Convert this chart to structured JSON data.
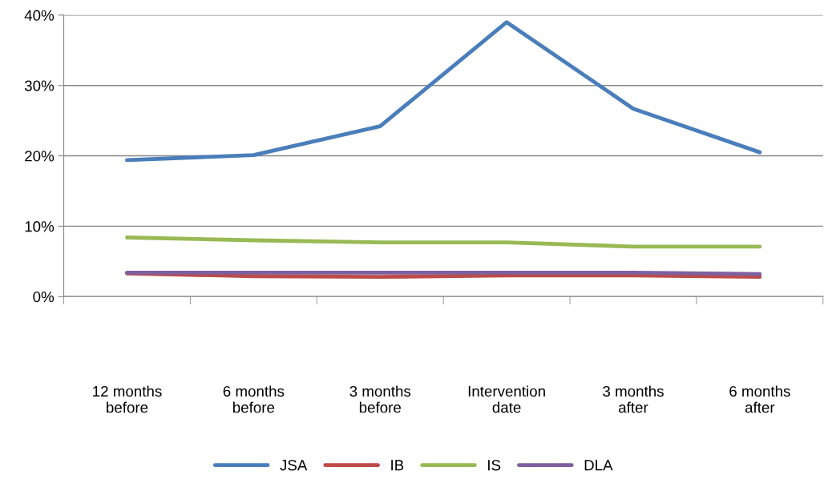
{
  "chart_data": {
    "type": "line",
    "categories": [
      "12 months before",
      "6 months before",
      "3 months before",
      "Intervention date",
      "3 months after",
      "6 months after"
    ],
    "series": [
      {
        "name": "JSA",
        "color": "#4a7ebb",
        "values": [
          19.4,
          20.1,
          24.2,
          39.0,
          26.7,
          20.5
        ]
      },
      {
        "name": "IB",
        "color": "#be4b48",
        "values": [
          3.3,
          2.9,
          2.8,
          3.0,
          3.0,
          2.8
        ]
      },
      {
        "name": "IS",
        "color": "#98b954",
        "values": [
          8.4,
          8.0,
          7.7,
          7.7,
          7.1,
          7.1
        ]
      },
      {
        "name": "DLA",
        "color": "#7d60a0",
        "values": [
          3.4,
          3.4,
          3.4,
          3.4,
          3.4,
          3.2
        ]
      }
    ],
    "ylim": [
      0,
      40
    ],
    "yticks": [
      {
        "value": 0,
        "label": "0%"
      },
      {
        "value": 10,
        "label": "10%"
      },
      {
        "value": 20,
        "label": "20%"
      },
      {
        "value": 30,
        "label": "30%"
      },
      {
        "value": 40,
        "label": "40%"
      }
    ],
    "grid": "y",
    "legend": "bottom",
    "marker": "none",
    "line_style": "solid"
  }
}
